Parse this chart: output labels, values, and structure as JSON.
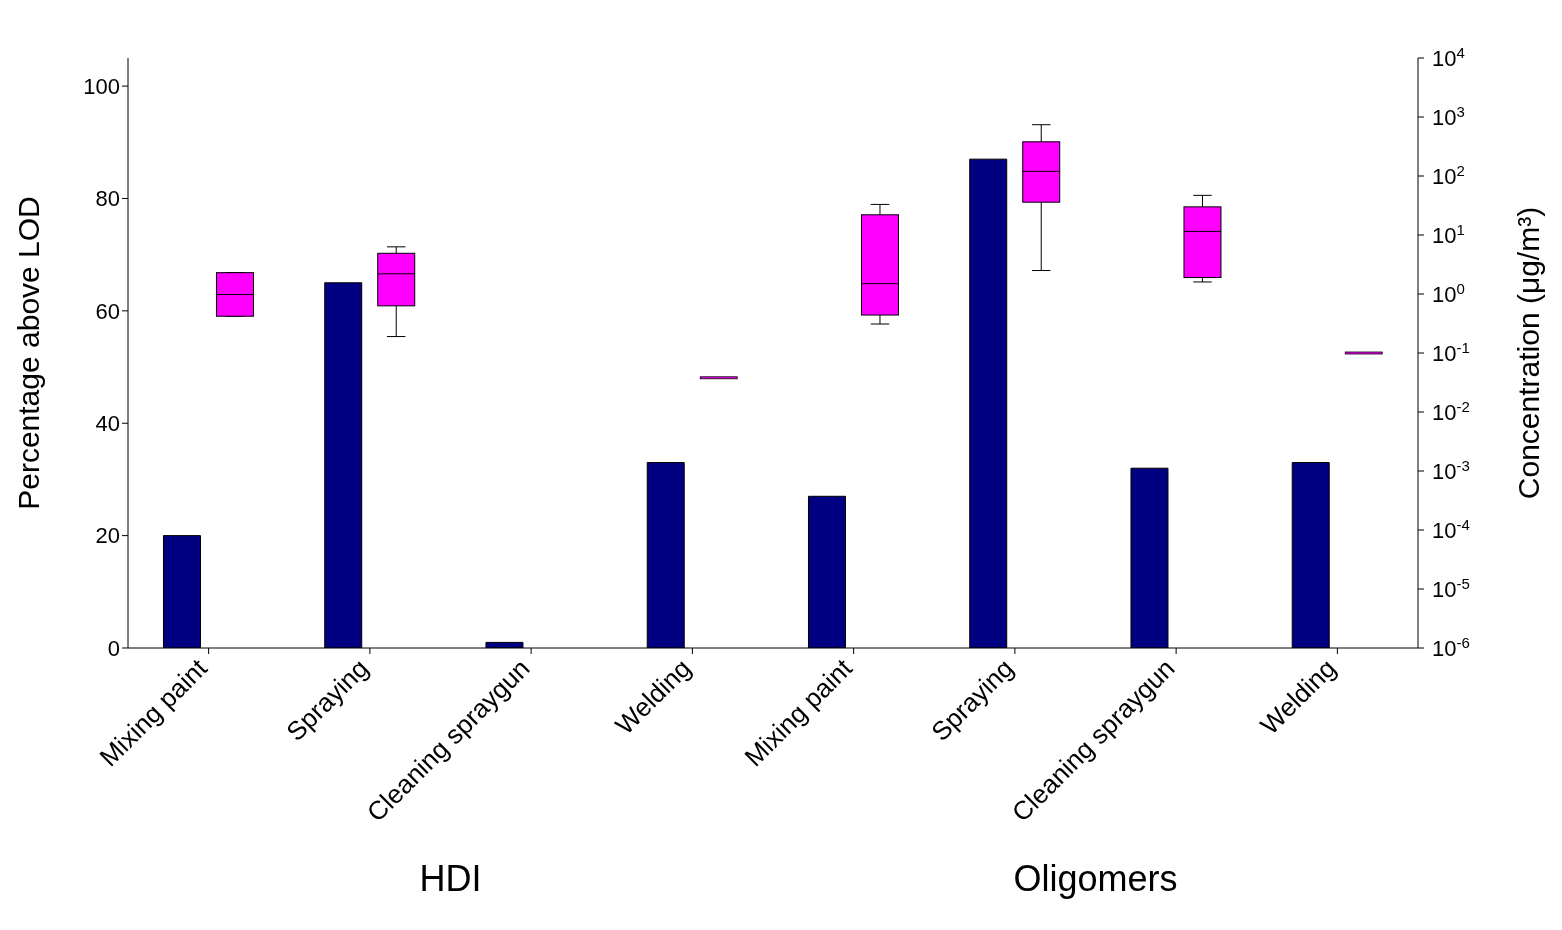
{
  "chart_data": {
    "type": "bar",
    "categories": [
      "Mixing paint",
      "Spraying",
      "Cleaning spraygun",
      "Welding",
      "Mixing paint",
      "Spraying",
      "Cleaning spraygun",
      "Welding"
    ],
    "series": [
      {
        "type": "bar",
        "color": "#000080",
        "values": [
          20,
          65,
          1,
          33,
          27,
          87,
          32,
          33
        ]
      },
      {
        "type": "box",
        "axis": "y2",
        "color": "#ff00ff",
        "boxes": [
          {
            "low": 0.42,
            "q1": 0.42,
            "median": 0.98,
            "q3": 2.3,
            "high": 2.3
          },
          {
            "low": 0.19,
            "q1": 0.63,
            "median": 2.2,
            "q3": 4.9,
            "high": 6.3
          },
          null,
          {
            "low": 0.038,
            "q1": 0.038,
            "median": 0.038,
            "q3": 0.038,
            "high": 0.038
          },
          {
            "low": 0.31,
            "q1": 0.44,
            "median": 1.5,
            "q3": 22,
            "high": 33
          },
          {
            "low": 2.5,
            "q1": 36,
            "median": 120,
            "q3": 380,
            "high": 740
          },
          {
            "low": 1.6,
            "q1": 1.9,
            "median": 11.5,
            "q3": 30,
            "high": 47
          },
          {
            "low": 0.1,
            "q1": 0.1,
            "median": 0.1,
            "q3": 0.1,
            "high": 0.1
          }
        ]
      }
    ],
    "ylim": [
      0,
      105
    ],
    "yticks": [
      0,
      20,
      40,
      60,
      80,
      100
    ],
    "y2lim": [
      1e-06,
      10000
    ],
    "y2ticks": [
      {
        "value": 1e-06,
        "label": "10$^{-6}$"
      },
      {
        "value": 1e-05,
        "label": "10$^{-5}$"
      },
      {
        "value": 0.0001,
        "label": "10$^{-4}$"
      },
      {
        "value": 0.001,
        "label": "10$^{-3}$"
      },
      {
        "value": 0.01,
        "label": "10$^{-2}$"
      },
      {
        "value": 0.1,
        "label": "10$^{-1}$"
      },
      {
        "value": 1,
        "label": "10$^{0}$"
      },
      {
        "value": 10,
        "label": "10$^{1}$"
      },
      {
        "value": 100,
        "label": "10$^{2}$"
      },
      {
        "value": 1000,
        "label": "10$^{3}$"
      },
      {
        "value": 10000,
        "label": "10$^{4}$"
      }
    ],
    "log": "y2",
    "ylabel": "Percentage above LOD",
    "y2label": "Concentration (μg/m³)",
    "annotations": [
      "HDI",
      "Oligomers"
    ],
    "grid": false,
    "legend": false
  }
}
